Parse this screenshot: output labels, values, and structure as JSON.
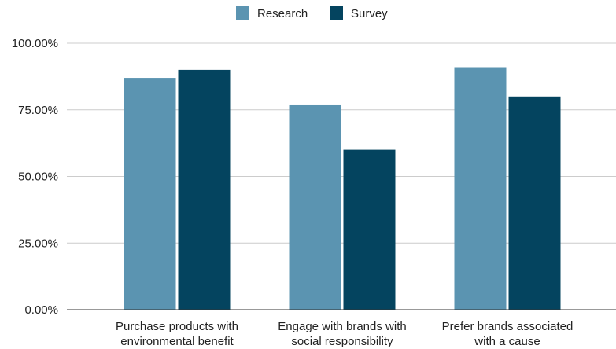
{
  "chart_data": {
    "type": "bar",
    "categories": [
      [
        "Purchase products with",
        "environmental benefit"
      ],
      [
        "Engage with brands with",
        "social responsibility"
      ],
      [
        "Prefer brands associated",
        "with a cause"
      ]
    ],
    "series": [
      {
        "name": "Research",
        "values": [
          0.87,
          0.77,
          0.91
        ],
        "color": "#5b94b1"
      },
      {
        "name": "Survey",
        "values": [
          0.9,
          0.6,
          0.8
        ],
        "color": "#04445f"
      }
    ],
    "yticks": [
      {
        "value": 0,
        "label": "0.00%"
      },
      {
        "value": 0.25,
        "label": "25.00%"
      },
      {
        "value": 0.5,
        "label": "50.00%"
      },
      {
        "value": 0.75,
        "label": "75.00%"
      },
      {
        "value": 1.0,
        "label": "100.00%"
      }
    ],
    "ylim": [
      0,
      1
    ],
    "grid": true,
    "legend_position": "top-center",
    "gridline_color": "#cccccc",
    "axis_color": "#333333"
  }
}
